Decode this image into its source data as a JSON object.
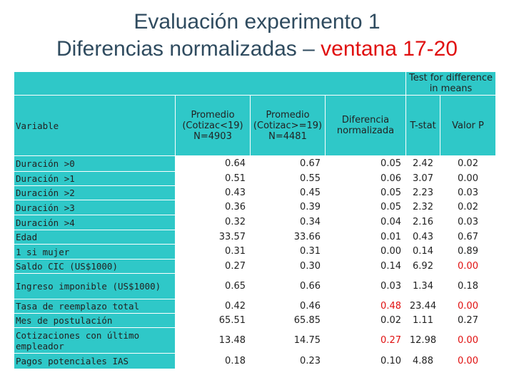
{
  "title": {
    "line1": "Evaluación experimento 1",
    "line2_prefix": "Diferencias normalizadas –",
    "line2_red": "ventana 17-20"
  },
  "header": {
    "test_group": "Test for difference in means",
    "variable": "Variable",
    "prom1": "Promedio (Cotizac<19) N=4903",
    "prom2": "Promedio (Cotizac>=19) N=4481",
    "diff": "Diferencia normalizada",
    "tstat": "T-stat",
    "pval": "Valor P"
  },
  "rows": [
    {
      "var": "Duración >0",
      "p1": "0.64",
      "p2": "0.67",
      "diff": "0.05",
      "t": "2.42",
      "p": "0.02"
    },
    {
      "var": "Duración >1",
      "p1": "0.51",
      "p2": "0.55",
      "diff": "0.06",
      "t": "3.07",
      "p": "0.00"
    },
    {
      "var": "Duración >2",
      "p1": "0.43",
      "p2": "0.45",
      "diff": "0.05",
      "t": "2.23",
      "p": "0.03"
    },
    {
      "var": "Duración >3",
      "p1": "0.36",
      "p2": "0.39",
      "diff": "0.05",
      "t": "2.32",
      "p": "0.02"
    },
    {
      "var": "Duración >4",
      "p1": "0.32",
      "p2": "0.34",
      "diff": "0.04",
      "t": "2.16",
      "p": "0.03"
    },
    {
      "var": "Edad",
      "p1": "33.57",
      "p2": "33.66",
      "diff": "0.01",
      "t": "0.43",
      "p": "0.67"
    },
    {
      "var": "1 si mujer",
      "p1": "0.31",
      "p2": "0.31",
      "diff": "0.00",
      "t": "0.14",
      "p": "0.89"
    },
    {
      "var": "Saldo CIC (US$1000)",
      "p1": "0.27",
      "p2": "0.30",
      "diff": "0.14",
      "t": "6.92",
      "p": "0.00"
    },
    {
      "var": "Ingreso imponible (US$1000)",
      "p1": "0.65",
      "p2": "0.66",
      "diff": "0.03",
      "t": "1.34",
      "p": "0.18"
    },
    {
      "var": "Tasa de reemplazo total",
      "p1": "0.42",
      "p2": "0.46",
      "diff": "0.48",
      "t": "23.44",
      "p": "0.00"
    },
    {
      "var": "Mes de postulación",
      "p1": "65.51",
      "p2": "65.85",
      "diff": "0.02",
      "t": "1.11",
      "p": "0.27"
    },
    {
      "var": "Cotizaciones con último empleador",
      "p1": "13.48",
      "p2": "14.75",
      "diff": "0.27",
      "t": "12.98",
      "p": "0.00"
    },
    {
      "var": "Pagos potenciales IAS",
      "p1": "0.18",
      "p2": "0.23",
      "diff": "0.10",
      "t": "4.88",
      "p": "0.00"
    }
  ],
  "colors": {
    "teal": "#2fc8c8",
    "highlight_red": "#e01010",
    "title": "#2f4b5f"
  }
}
